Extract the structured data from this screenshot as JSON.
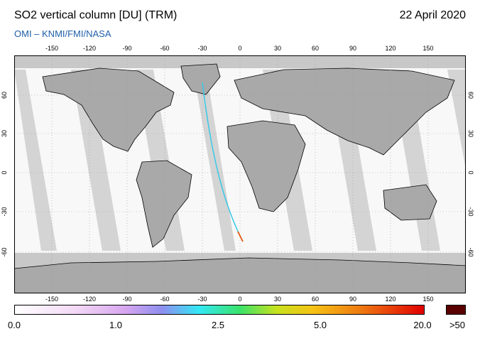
{
  "header": {
    "title": "SO2 vertical column [DU] (TRM)",
    "date": "22 April 2020",
    "subtitle": "OMI  –  KNMI/FMI/NASA"
  },
  "map": {
    "longitude_ticks": [
      "-150",
      "-120",
      "-90",
      "-60",
      "-30",
      "0",
      "30",
      "60",
      "90",
      "120",
      "150"
    ],
    "latitude_ticks_left": [
      "60",
      "30",
      "0",
      "-30",
      "-60"
    ],
    "latitude_ticks_right": [
      "60",
      "30",
      "0",
      "-30",
      "-60"
    ],
    "colors": {
      "ocean_land_fill": "#f8f8f8",
      "swath_gap": "#d2d2d2",
      "polar": "#b6b6b6",
      "coast": "#000000",
      "grid": "#9a9a9a"
    }
  },
  "colorbar": {
    "labels": [
      "0.0",
      "1.0",
      "2.5",
      "5.0",
      "20.0"
    ],
    "max_label": ">50",
    "max_color": "#5a0000",
    "stops": [
      "#ffffff",
      "#f3d8f6",
      "#d7a6ef",
      "#8e8ef0",
      "#33e8f5",
      "#39e36a",
      "#c7e21d",
      "#f6c214",
      "#ee7712",
      "#e10000"
    ]
  }
}
